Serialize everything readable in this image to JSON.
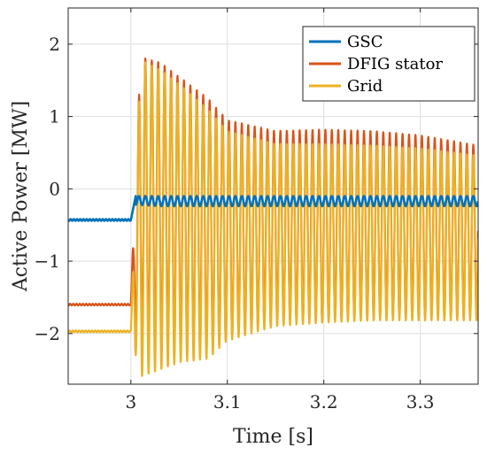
{
  "chart_data": {
    "type": "line",
    "title": "",
    "xlabel": "Time [s]",
    "ylabel": "Active Power [MW]",
    "xlim": [
      2.935,
      3.36
    ],
    "ylim": [
      -2.7,
      2.5
    ],
    "xticks": [
      3.0,
      3.1,
      3.2,
      3.3
    ],
    "xtick_labels": [
      "3",
      "3.1",
      "3.2",
      "3.3"
    ],
    "yticks": [
      -2,
      -1,
      0,
      1,
      2
    ],
    "ytick_labels": [
      "−2",
      "−1",
      "0",
      "1",
      "2"
    ],
    "grid": true,
    "legend_position": "top-right",
    "fault_time": 3.0,
    "oscillation_frequency_hz": 150,
    "series": [
      {
        "name": "GSC",
        "color": "#0072BD",
        "pre_fault_value": -0.43,
        "x": [
          2.935,
          3.0,
          3.005,
          3.36
        ],
        "y": [
          -0.43,
          -0.43,
          -0.12,
          -0.12
        ],
        "post_fault_envelope": {
          "x": [
            3.005,
            3.03,
            3.1,
            3.36
          ],
          "upper": [
            -0.1,
            -0.1,
            -0.1,
            -0.1
          ],
          "lower": [
            -0.22,
            -0.24,
            -0.24,
            -0.24
          ]
        }
      },
      {
        "name": "DFIG stator",
        "color": "#D95319",
        "pre_fault_value": -1.6,
        "x": [
          2.935,
          3.0,
          3.36
        ],
        "y": [
          -1.6,
          -1.6,
          -0.35
        ],
        "post_fault_envelope": {
          "x": [
            3.0,
            3.01,
            3.03,
            3.05,
            3.08,
            3.1,
            3.15,
            3.2,
            3.25,
            3.3,
            3.36
          ],
          "upper": [
            -1.5,
            1.82,
            1.75,
            1.55,
            1.25,
            0.95,
            0.8,
            0.82,
            0.8,
            0.74,
            0.6
          ],
          "lower": [
            -1.6,
            -2.1,
            -2.2,
            -2.2,
            -2.2,
            -2.05,
            -1.8,
            -1.8,
            -1.76,
            -1.76,
            -1.76
          ]
        }
      },
      {
        "name": "Grid",
        "color": "#EDB120",
        "pre_fault_value": -1.97,
        "x": [
          2.935,
          3.0,
          3.36
        ],
        "y": [
          -1.97,
          -1.97,
          -0.4
        ],
        "post_fault_envelope": {
          "x": [
            3.0,
            3.01,
            3.03,
            3.05,
            3.08,
            3.1,
            3.15,
            3.2,
            3.25,
            3.3,
            3.36
          ],
          "upper": [
            -1.9,
            1.78,
            1.65,
            1.45,
            1.1,
            0.8,
            0.62,
            0.62,
            0.6,
            0.56,
            0.46
          ],
          "lower": [
            -2.0,
            -2.6,
            -2.5,
            -2.4,
            -2.35,
            -2.1,
            -1.9,
            -1.85,
            -1.82,
            -1.82,
            -1.82
          ]
        }
      }
    ]
  }
}
